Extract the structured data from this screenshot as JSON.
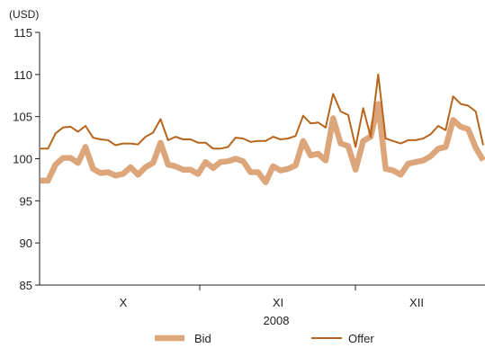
{
  "chart_data": {
    "type": "line",
    "unit_label": "(USD)",
    "ylim": [
      85,
      115
    ],
    "y_ticks": [
      85,
      90,
      95,
      100,
      105,
      110,
      115
    ],
    "x_ticks": [
      "X",
      "XI",
      "XII"
    ],
    "year_label": "2008",
    "grid": false,
    "legend_position": "bottom",
    "colors": {
      "bid": "#dca67a",
      "offer": "#b8651c",
      "axis": "#231f20"
    },
    "series": [
      {
        "name": "Bid",
        "values": [
          97.4,
          97.4,
          99.3,
          100.1,
          100.1,
          99.5,
          101.4,
          98.8,
          98.3,
          98.4,
          98.0,
          98.2,
          99.0,
          98.1,
          99.0,
          99.5,
          101.9,
          99.3,
          99.1,
          98.7,
          98.7,
          98.2,
          99.6,
          98.9,
          99.6,
          99.7,
          100.0,
          99.7,
          98.4,
          98.4,
          97.2,
          99.1,
          98.6,
          98.8,
          99.2,
          102.1,
          100.4,
          100.6,
          99.8,
          104.8,
          101.8,
          101.5,
          98.7,
          102.1,
          102.6,
          106.5,
          98.8,
          98.6,
          98.1,
          99.4,
          99.6,
          99.8,
          100.3,
          101.2,
          101.4,
          104.6,
          103.8,
          103.5,
          101.3,
          99.8
        ]
      },
      {
        "name": "Offer",
        "values": [
          101.2,
          101.2,
          103.0,
          103.7,
          103.8,
          103.2,
          103.9,
          102.5,
          102.3,
          102.2,
          101.6,
          101.8,
          101.8,
          101.7,
          102.6,
          103.1,
          104.7,
          102.2,
          102.6,
          102.3,
          102.3,
          101.9,
          101.9,
          101.2,
          101.2,
          101.4,
          102.5,
          102.4,
          102.0,
          102.1,
          102.1,
          102.6,
          102.3,
          102.4,
          102.7,
          105.1,
          104.2,
          104.3,
          103.7,
          107.7,
          105.6,
          105.2,
          101.4,
          106.0,
          102.6,
          110.0,
          102.4,
          102.1,
          101.8,
          102.2,
          102.2,
          102.4,
          102.9,
          103.9,
          103.4,
          107.4,
          106.5,
          106.3,
          105.6,
          101.6
        ]
      }
    ]
  }
}
